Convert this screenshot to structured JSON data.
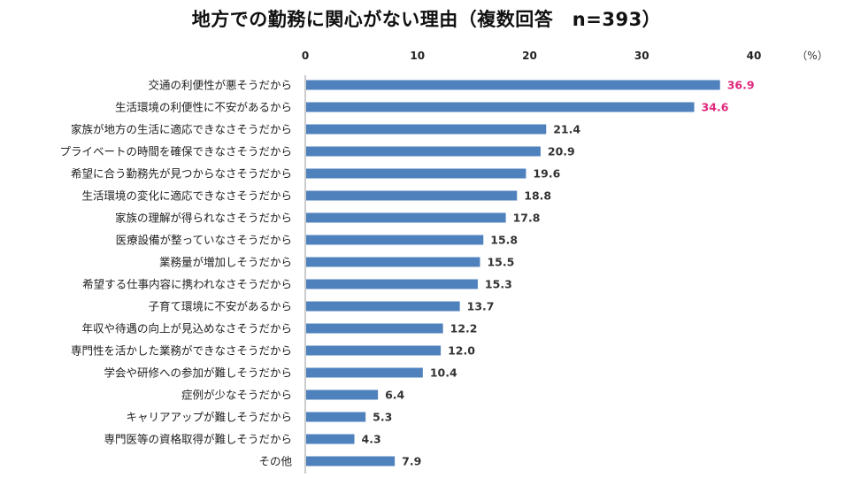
{
  "chart_data": {
    "type": "bar",
    "orientation": "horizontal",
    "title": "地方での勤務に関心がない理由（複数回答　n=393）",
    "unit": "（%）",
    "xlim": [
      0,
      40
    ],
    "xticks": [
      0,
      10,
      20,
      30,
      40
    ],
    "grid": false,
    "bar_color": "#4f81bd",
    "value_label_color": "#333333",
    "highlight_label_color": "#e0267b",
    "highlight_top_n": 2,
    "categories": [
      "交通の利便性が悪そうだから",
      "生活環境の利便性に不安があるから",
      "家族が地方の生活に適応できなさそうだから",
      "プライベートの時間を確保できなさそうだから",
      "希望に合う勤務先が見つからなさそうだから",
      "生活環境の変化に適応できなさそうだから",
      "家族の理解が得られなさそうだから",
      "医療設備が整っていなさそうだから",
      "業務量が増加しそうだから",
      "希望する仕事内容に携われなさそうだから",
      "子育て環境に不安があるから",
      "年収や待遇の向上が見込めなさそうだから",
      "専門性を活かした業務ができなさそうだから",
      "学会や研修への参加が難しそうだから",
      "症例が少なそうだから",
      "キャリアアップが難しそうだから",
      "専門医等の資格取得が難しそうだから",
      "その他"
    ],
    "values": [
      36.9,
      34.6,
      21.4,
      20.9,
      19.6,
      18.8,
      17.8,
      15.8,
      15.5,
      15.3,
      13.7,
      12.2,
      12.0,
      10.4,
      6.4,
      5.3,
      4.3,
      7.9
    ]
  }
}
